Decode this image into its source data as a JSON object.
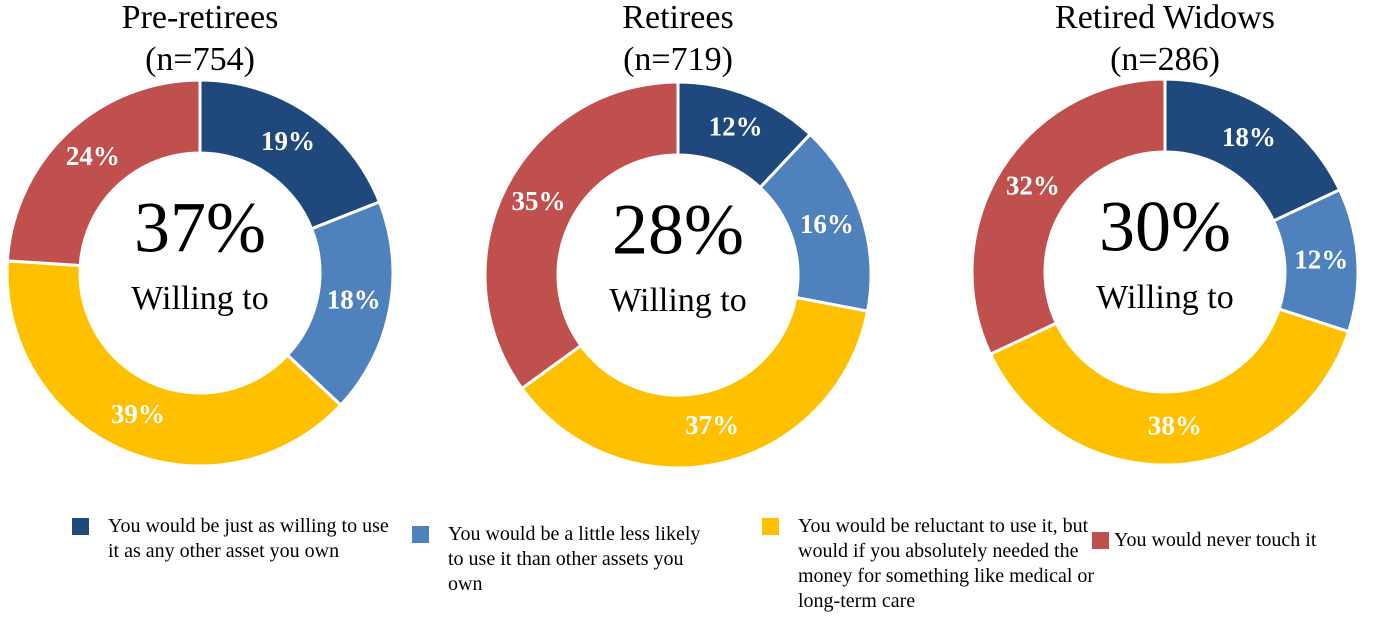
{
  "chart_data": [
    {
      "type": "donut",
      "title": "Pre-retirees",
      "subtitle": "(n=754)",
      "center_label": "37%",
      "center_text": "Willing to",
      "values": [
        19,
        18,
        39,
        24
      ],
      "value_labels": [
        "19%",
        "18%",
        "39%",
        "24%"
      ]
    },
    {
      "type": "donut",
      "title": "Retirees",
      "subtitle": "(n=719)",
      "center_label": "28%",
      "center_text": "Willing to",
      "values": [
        12,
        16,
        37,
        35
      ],
      "value_labels": [
        "12%",
        "16%",
        "37%",
        "35%"
      ]
    },
    {
      "type": "donut",
      "title": "Retired Widows",
      "subtitle": "(n=286)",
      "center_label": "30%",
      "center_text": "Willing to",
      "values": [
        18,
        12,
        38,
        32
      ],
      "value_labels": [
        "18%",
        "12%",
        "38%",
        "32%"
      ]
    }
  ],
  "legend": {
    "labels": [
      "You would be just as willing to use it as any other asset you own",
      "You would be a little less likely to use it than other assets you own",
      "You would be reluctant to use it, but would if you absolutely needed the money for something like medical or long-term care",
      "You would never touch it"
    ],
    "colors": [
      "#1f497d",
      "#4f81bd",
      "#ffc000",
      "#c0504d"
    ]
  }
}
